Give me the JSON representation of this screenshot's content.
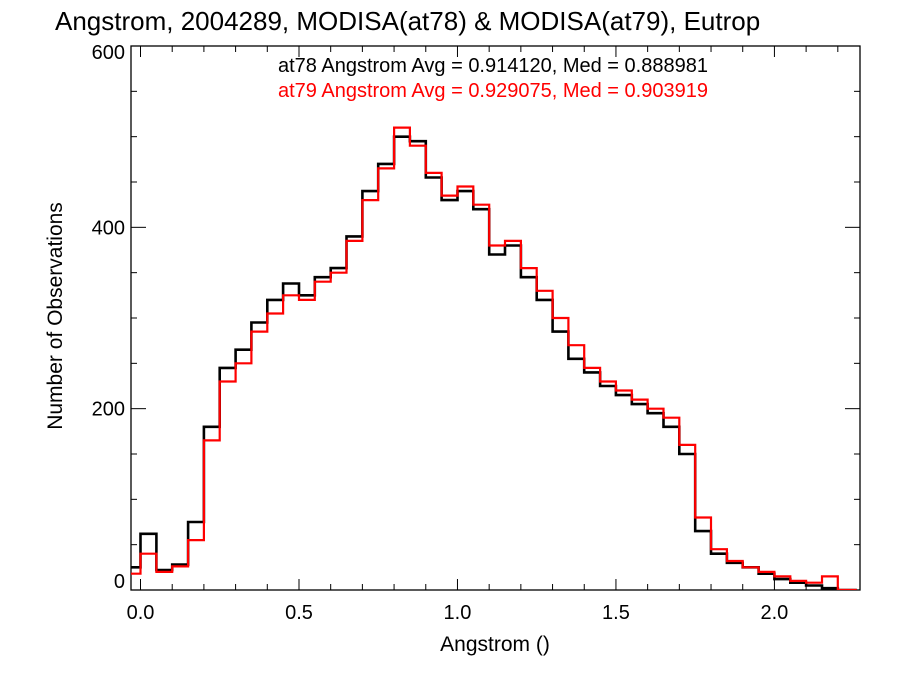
{
  "chart_data": {
    "type": "line",
    "step": true,
    "title": "Angstrom, 2004289, MODISA(at78) & MODISA(at79), Eutrop",
    "xlabel": "Angstrom ()",
    "ylabel": "Number of Observations",
    "xlim": [
      -0.03,
      2.27
    ],
    "ylim": [
      0,
      600
    ],
    "x_ticks": [
      0.0,
      0.5,
      1.0,
      1.5,
      2.0
    ],
    "x_tick_labels": [
      "0.0",
      "0.5",
      "1.0",
      "1.5",
      "2.0"
    ],
    "y_ticks": [
      0,
      200,
      400,
      600
    ],
    "y_tick_labels": [
      "0",
      "200",
      "400",
      "600"
    ],
    "grid": false,
    "legend_position": "top",
    "series": [
      {
        "name": "at78 Angstrom Avg = 0.914120, Med = 0.888981",
        "color": "#000000",
        "x": [
          -0.04,
          0.0,
          0.05,
          0.1,
          0.15,
          0.2,
          0.25,
          0.3,
          0.35,
          0.4,
          0.45,
          0.5,
          0.55,
          0.6,
          0.65,
          0.7,
          0.75,
          0.8,
          0.85,
          0.9,
          0.95,
          1.0,
          1.05,
          1.1,
          1.15,
          1.2,
          1.25,
          1.3,
          1.35,
          1.4,
          1.45,
          1.5,
          1.55,
          1.6,
          1.65,
          1.7,
          1.75,
          1.8,
          1.85,
          1.9,
          1.95,
          2.0,
          2.05,
          2.1,
          2.15,
          2.2,
          2.26
        ],
        "y": [
          25,
          62,
          22,
          28,
          75,
          180,
          245,
          265,
          295,
          320,
          338,
          325,
          345,
          355,
          390,
          440,
          470,
          500,
          495,
          455,
          430,
          440,
          420,
          370,
          380,
          345,
          320,
          285,
          255,
          240,
          225,
          215,
          205,
          195,
          180,
          150,
          65,
          40,
          30,
          25,
          18,
          12,
          8,
          5,
          2,
          0,
          0
        ]
      },
      {
        "name": "at79 Angstrom Avg = 0.929075, Med = 0.903919",
        "color": "#ff0000",
        "x": [
          -0.04,
          0.0,
          0.05,
          0.1,
          0.15,
          0.2,
          0.25,
          0.3,
          0.35,
          0.4,
          0.45,
          0.5,
          0.55,
          0.6,
          0.65,
          0.7,
          0.75,
          0.8,
          0.85,
          0.9,
          0.95,
          1.0,
          1.05,
          1.1,
          1.15,
          1.2,
          1.25,
          1.3,
          1.35,
          1.4,
          1.45,
          1.5,
          1.55,
          1.6,
          1.65,
          1.7,
          1.75,
          1.8,
          1.85,
          1.9,
          1.95,
          2.0,
          2.05,
          2.1,
          2.15,
          2.2,
          2.26
        ],
        "y": [
          18,
          40,
          20,
          26,
          55,
          165,
          230,
          250,
          285,
          305,
          325,
          320,
          340,
          350,
          385,
          430,
          465,
          510,
          490,
          460,
          435,
          445,
          425,
          380,
          385,
          355,
          330,
          300,
          270,
          245,
          230,
          220,
          210,
          200,
          190,
          160,
          80,
          45,
          32,
          25,
          20,
          15,
          10,
          8,
          15,
          0,
          0
        ]
      }
    ]
  }
}
